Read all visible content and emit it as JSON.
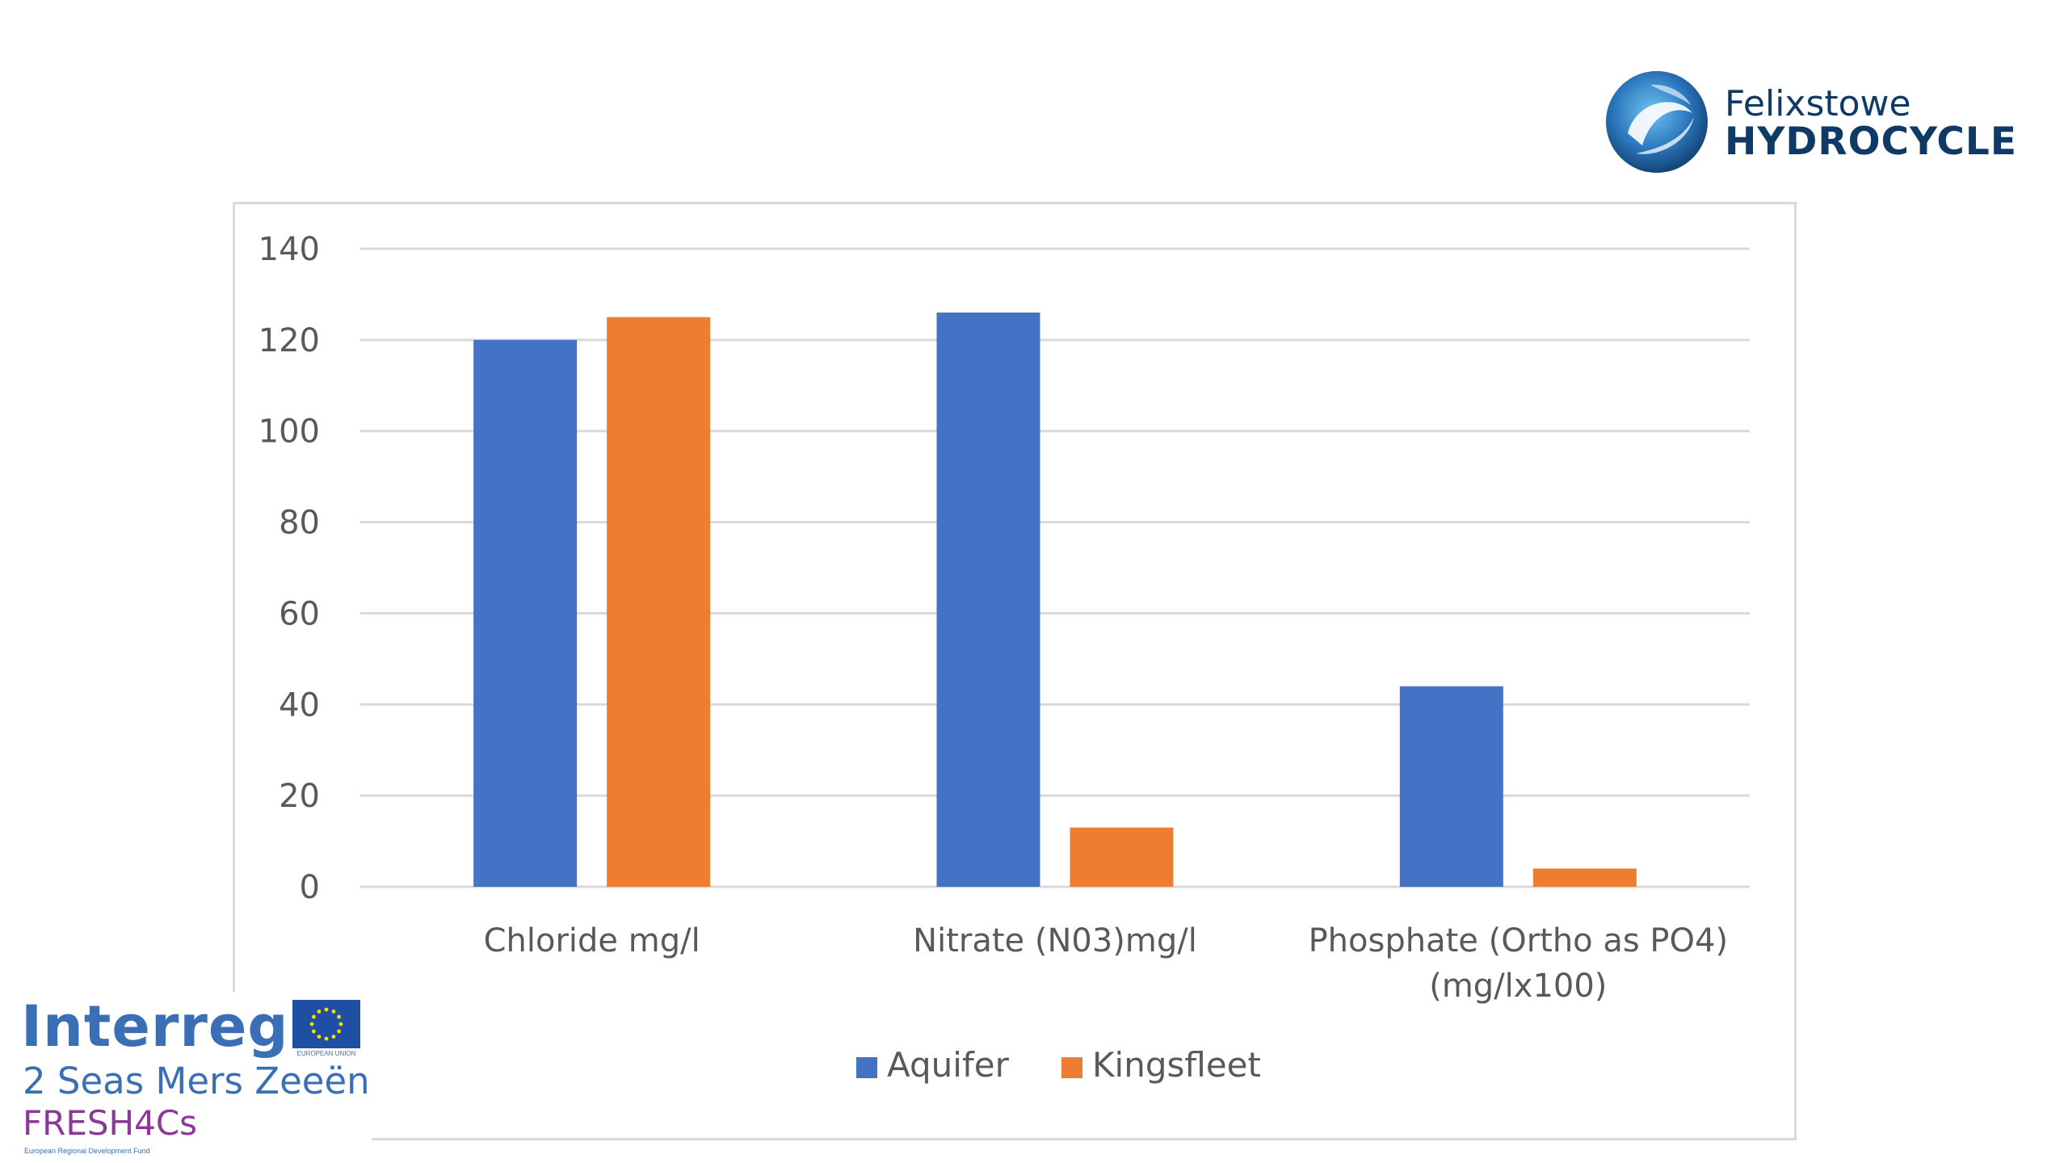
{
  "brand": {
    "name_top": "Felixstowe",
    "name_bottom": "HYDROCYCLE",
    "logo_icon": "swirl-globe-icon",
    "colors": {
      "dark": "#0f3a66",
      "light": "#3d9ad6"
    }
  },
  "sponsor": {
    "program": "Interreg",
    "eu_caption": "EUROPEAN UNION",
    "region": "2 Seas Mers Zeeën",
    "project": "FRESH4Cs",
    "fund": "European Regional Development Fund",
    "flag_icon": "eu-flag-icon",
    "colors": {
      "program": "#3a6fb6",
      "project": "#8a3a96"
    }
  },
  "chart_data": {
    "type": "bar",
    "title": "",
    "xlabel": "",
    "ylabel": "",
    "categories": [
      [
        "Chloride mg/l"
      ],
      [
        "Nitrate (N03)mg/l"
      ],
      [
        "Phosphate (Ortho as PO4)",
        "(mg/lx100)"
      ]
    ],
    "series": [
      {
        "name": "Aquifer",
        "color": "#4472c4",
        "values": [
          120,
          126,
          44
        ]
      },
      {
        "name": "Kingsfleet",
        "color": "#ed7d31",
        "values": [
          125,
          13,
          4
        ]
      }
    ],
    "ylim": [
      0,
      140
    ],
    "yticks": [
      0,
      20,
      40,
      60,
      80,
      100,
      120,
      140
    ],
    "grid": true,
    "legend_position": "bottom"
  }
}
